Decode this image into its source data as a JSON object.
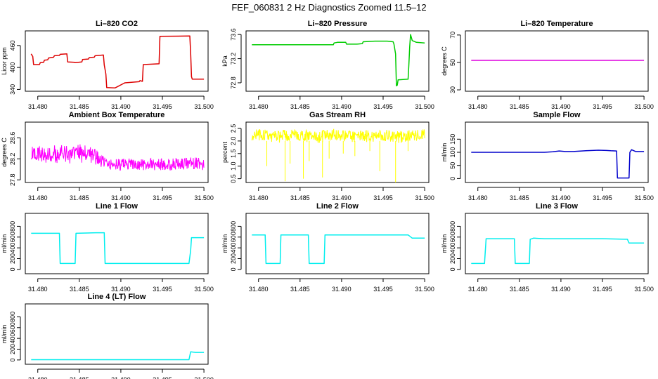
{
  "page": {
    "title": "FEF_060831  2 Hz Diagnostics Zoomed 11.5–12"
  },
  "chart_data": [
    {
      "type": "line",
      "title": "Li–820 CO2",
      "xlabel": "",
      "ylabel": "Licor ppm",
      "xlim": [
        31.4785,
        31.5005
      ],
      "ylim": [
        335,
        500
      ],
      "xticks": [
        31.48,
        31.485,
        31.49,
        31.495,
        31.5
      ],
      "xtick_labels": [
        "31.480",
        "31.485",
        "31.490",
        "31.495",
        "31.500"
      ],
      "yticks": [
        340,
        400,
        460
      ],
      "ytick_labels": [
        "340",
        "400",
        "460"
      ],
      "grid": false,
      "series": [
        {
          "color": "#dd0000",
          "x": [
            31.4792,
            31.4794,
            31.4795,
            31.4802,
            31.4803,
            31.4807,
            31.4808,
            31.4812,
            31.4813,
            31.4819,
            31.482,
            31.4826,
            31.4827,
            31.4835,
            31.4836,
            31.4844,
            31.4845,
            31.4853,
            31.4854,
            31.4861,
            31.4862,
            31.4868,
            31.4869,
            31.4879,
            31.488,
            31.4882,
            31.4883,
            31.4892,
            31.4893,
            31.4904,
            31.4905,
            31.4922,
            31.4923,
            31.4926,
            31.4927,
            31.4946,
            31.4947,
            31.4983,
            31.4984,
            31.4985,
            31.4986,
            31.5
          ],
          "y": [
            437,
            430,
            408,
            408,
            413,
            414,
            420,
            421,
            426,
            428,
            432,
            433,
            436,
            437,
            415,
            414,
            413,
            415,
            422,
            423,
            427,
            428,
            432,
            434,
            407,
            382,
            345,
            344,
            344,
            357,
            358,
            361,
            364,
            362,
            408,
            410,
            485,
            486,
            440,
            375,
            368,
            368
          ]
        }
      ]
    },
    {
      "type": "line",
      "title": "Li–820 Pressure",
      "xlabel": "",
      "ylabel": "kPa",
      "xlim": [
        31.4785,
        31.5005
      ],
      "ylim": [
        72.66,
        73.66
      ],
      "xticks": [
        31.48,
        31.485,
        31.49,
        31.495,
        31.5
      ],
      "xtick_labels": [
        "31.480",
        "31.485",
        "31.490",
        "31.495",
        "31.500"
      ],
      "yticks": [
        72.8,
        73.2,
        73.6
      ],
      "ytick_labels": [
        "72.8",
        "73.2",
        "73.6"
      ],
      "grid": false,
      "series": [
        {
          "color": "#00cc00",
          "x": [
            31.4792,
            31.489,
            31.4891,
            31.4895,
            31.4905,
            31.4906,
            31.4918,
            31.4925,
            31.4926,
            31.494,
            31.4955,
            31.4962,
            31.4963,
            31.4965,
            31.4966,
            31.4967,
            31.4968,
            31.498,
            31.4981,
            31.4982,
            31.4983,
            31.4985,
            31.499,
            31.5
          ],
          "y": [
            73.43,
            73.43,
            73.46,
            73.47,
            73.47,
            73.44,
            73.44,
            73.45,
            73.48,
            73.49,
            73.49,
            73.48,
            73.44,
            73.28,
            72.75,
            72.76,
            72.85,
            72.86,
            73.1,
            73.4,
            73.6,
            73.5,
            73.47,
            73.46
          ]
        }
      ]
    },
    {
      "type": "line",
      "title": "Li–820 Temperature",
      "xlabel": "",
      "ylabel": "degrees C",
      "xlim": [
        31.4785,
        31.5005
      ],
      "ylim": [
        29,
        73
      ],
      "xticks": [
        31.48,
        31.485,
        31.49,
        31.495,
        31.5
      ],
      "xtick_labels": [
        "31.480",
        "31.485",
        "31.490",
        "31.495",
        "31.500"
      ],
      "yticks": [
        30,
        50,
        70
      ],
      "ytick_labels": [
        "30",
        "50",
        "70"
      ],
      "grid": false,
      "series": [
        {
          "color": "#dd00dd",
          "x": [
            31.4792,
            31.5
          ],
          "y": [
            51.5,
            51.5
          ]
        }
      ]
    },
    {
      "type": "line",
      "title": "Ambient Box Temperature",
      "xlabel": "",
      "ylabel": "degrees C",
      "xlim": [
        31.4785,
        31.5005
      ],
      "ylim": [
        27.75,
        28.9
      ],
      "xticks": [
        31.48,
        31.485,
        31.49,
        31.495,
        31.5
      ],
      "xtick_labels": [
        "31.480",
        "31.485",
        "31.490",
        "31.495",
        "31.500"
      ],
      "yticks": [
        27.8,
        28.2,
        28.6
      ],
      "ytick_labels": [
        "27.8",
        "28.2",
        "28.6"
      ],
      "grid": false,
      "series": [
        {
          "color": "#ff00ff",
          "x": [
            31.4792,
            31.48,
            31.481,
            31.482,
            31.483,
            31.484,
            31.485,
            31.486,
            31.487,
            31.488,
            31.489,
            31.49,
            31.491,
            31.492,
            31.493,
            31.494,
            31.495,
            31.496,
            31.497,
            31.498,
            31.499,
            31.5
          ],
          "y": [
            28.26,
            28.3,
            28.28,
            28.3,
            28.29,
            28.27,
            28.3,
            28.31,
            28.25,
            28.11,
            28.1,
            28.09,
            28.1,
            28.08,
            28.1,
            28.09,
            28.1,
            28.09,
            28.11,
            28.1,
            28.12,
            28.09
          ],
          "spread": [
            0.2,
            0.22,
            0.2,
            0.22,
            0.22,
            0.2,
            0.22,
            0.22,
            0.2,
            0.15,
            0.14,
            0.14,
            0.14,
            0.14,
            0.15,
            0.14,
            0.14,
            0.14,
            0.15,
            0.15,
            0.15,
            0.14
          ]
        }
      ]
    },
    {
      "type": "line",
      "title": "Gas Stream RH",
      "xlabel": "",
      "ylabel": "percent",
      "xlim": [
        31.4785,
        31.5005
      ],
      "ylim": [
        0.35,
        2.75
      ],
      "xticks": [
        31.48,
        31.485,
        31.49,
        31.495,
        31.5
      ],
      "xtick_labels": [
        "31.480",
        "31.485",
        "31.490",
        "31.495",
        "31.500"
      ],
      "yticks": [
        0.5,
        1.0,
        1.5,
        2.0,
        2.5
      ],
      "ytick_labels": [
        "0.5",
        "1.0",
        "1.5",
        "2.0",
        "2.5"
      ],
      "grid": false,
      "series": [
        {
          "color": "#ffff00",
          "x": [
            31.4792,
            31.48,
            31.481,
            31.482,
            31.483,
            31.484,
            31.485,
            31.486,
            31.487,
            31.488,
            31.489,
            31.49,
            31.491,
            31.492,
            31.493,
            31.494,
            31.495,
            31.496,
            31.497,
            31.498,
            31.499,
            31.5
          ],
          "y": [
            2.2,
            2.25,
            2.2,
            2.15,
            2.2,
            2.25,
            2.2,
            2.2,
            2.15,
            2.2,
            2.25,
            2.2,
            2.2,
            2.15,
            2.2,
            2.2,
            2.25,
            2.2,
            2.15,
            2.2,
            2.2,
            2.25
          ],
          "spread": [
            0.3,
            0.3,
            0.3,
            0.3,
            0.3,
            0.3,
            0.3,
            0.3,
            0.3,
            0.3,
            0.3,
            0.3,
            0.3,
            0.3,
            0.3,
            0.3,
            0.3,
            0.3,
            0.3,
            0.3,
            0.3,
            0.3
          ]
        }
      ],
      "dips": [
        {
          "x": 31.481,
          "y": 1.0
        },
        {
          "x": 31.4832,
          "y": 0.4
        },
        {
          "x": 31.4838,
          "y": 1.1
        },
        {
          "x": 31.4854,
          "y": 0.5
        },
        {
          "x": 31.4861,
          "y": 1.2
        },
        {
          "x": 31.4877,
          "y": 0.55
        },
        {
          "x": 31.4885,
          "y": 1.3
        },
        {
          "x": 31.4902,
          "y": 1.5
        },
        {
          "x": 31.4916,
          "y": 1.4
        },
        {
          "x": 31.4934,
          "y": 1.6
        },
        {
          "x": 31.4946,
          "y": 0.8
        },
        {
          "x": 31.4965,
          "y": 0.35
        },
        {
          "x": 31.498,
          "y": 1.6
        }
      ]
    },
    {
      "type": "line",
      "title": "Sample Flow",
      "xlabel": "",
      "ylabel": "ml/min",
      "xlim": [
        31.4785,
        31.5005
      ],
      "ylim": [
        -15,
        215
      ],
      "xticks": [
        31.48,
        31.485,
        31.49,
        31.495,
        31.5
      ],
      "xtick_labels": [
        "31.480",
        "31.485",
        "31.490",
        "31.495",
        "31.500"
      ],
      "yticks": [
        0,
        50,
        100,
        150
      ],
      "ytick_labels": [
        "0",
        "50",
        "100",
        "150"
      ],
      "grid": false,
      "series": [
        {
          "color": "#0000cc",
          "x": [
            31.4792,
            31.488,
            31.489,
            31.4898,
            31.4905,
            31.4915,
            31.493,
            31.4945,
            31.4955,
            31.496,
            31.4967,
            31.4968,
            31.4982,
            31.4983,
            31.4985,
            31.499,
            31.5
          ],
          "y": [
            100,
            100,
            102,
            105,
            103,
            103,
            106,
            108,
            107,
            106,
            105,
            2,
            2,
            100,
            110,
            103,
            103
          ]
        }
      ]
    },
    {
      "type": "line",
      "title": "Line 1 Flow",
      "xlabel": "",
      "ylabel": "ml/min",
      "xlim": [
        31.4785,
        31.5005
      ],
      "ylim": [
        -80,
        1040
      ],
      "xticks": [
        31.48,
        31.485,
        31.49,
        31.495,
        31.5
      ],
      "xtick_labels": [
        "31.480",
        "31.485",
        "31.490",
        "31.495",
        "31.500"
      ],
      "yticks": [
        0,
        200,
        400,
        600,
        800
      ],
      "ytick_labels": [
        "0",
        "200",
        "400",
        "600",
        "800"
      ],
      "grid": false,
      "series": [
        {
          "color": "#00eeee",
          "x": [
            31.4792,
            31.4826,
            31.4827,
            31.4845,
            31.4846,
            31.487,
            31.488,
            31.4881,
            31.4982,
            31.4984,
            31.4985,
            31.5
          ],
          "y": [
            670,
            670,
            110,
            110,
            670,
            680,
            680,
            110,
            110,
            350,
            590,
            590
          ]
        }
      ]
    },
    {
      "type": "line",
      "title": "Line 2 Flow",
      "xlabel": "",
      "ylabel": "ml/min",
      "xlim": [
        31.4785,
        31.5005
      ],
      "ylim": [
        -80,
        1040
      ],
      "xticks": [
        31.48,
        31.485,
        31.49,
        31.495,
        31.5
      ],
      "xtick_labels": [
        "31.480",
        "31.485",
        "31.490",
        "31.495",
        "31.500"
      ],
      "yticks": [
        0,
        200,
        400,
        600,
        800
      ],
      "ytick_labels": [
        "0",
        "200",
        "400",
        "600",
        "800"
      ],
      "grid": false,
      "series": [
        {
          "color": "#00eeee",
          "x": [
            31.4792,
            31.4808,
            31.4809,
            31.4826,
            31.4827,
            31.486,
            31.4861,
            31.4879,
            31.488,
            31.498,
            31.4985,
            31.5
          ],
          "y": [
            640,
            640,
            110,
            110,
            640,
            640,
            110,
            110,
            640,
            640,
            580,
            580
          ]
        }
      ]
    },
    {
      "type": "line",
      "title": "Line 3 Flow",
      "xlabel": "",
      "ylabel": "ml/min",
      "xlim": [
        31.4785,
        31.5005
      ],
      "ylim": [
        -80,
        1040
      ],
      "xticks": [
        31.48,
        31.485,
        31.49,
        31.495,
        31.5
      ],
      "xtick_labels": [
        "31.480",
        "31.485",
        "31.490",
        "31.495",
        "31.500"
      ],
      "yticks": [
        0,
        200,
        400,
        600,
        800
      ],
      "ytick_labels": [
        "0",
        "200",
        "400",
        "600",
        "800"
      ],
      "grid": false,
      "series": [
        {
          "color": "#00eeee",
          "x": [
            31.4792,
            31.4808,
            31.481,
            31.4844,
            31.4845,
            31.4862,
            31.4863,
            31.4867,
            31.488,
            31.492,
            31.495,
            31.498,
            31.4982,
            31.5
          ],
          "y": [
            110,
            110,
            570,
            570,
            110,
            110,
            560,
            580,
            570,
            570,
            570,
            560,
            490,
            490
          ]
        }
      ]
    },
    {
      "type": "line",
      "title": "Line 4 (LT) Flow",
      "xlabel": "",
      "ylabel": "ml/min",
      "xlim": [
        31.4785,
        31.5005
      ],
      "ylim": [
        -80,
        1040
      ],
      "xticks": [
        31.48,
        31.485,
        31.49,
        31.495,
        31.5
      ],
      "xtick_labels": [
        "31.480",
        "31.485",
        "31.490",
        "31.495",
        "31.500"
      ],
      "yticks": [
        0,
        200,
        400,
        600,
        800
      ],
      "ytick_labels": [
        "0",
        "200",
        "400",
        "600",
        "800"
      ],
      "grid": false,
      "series": [
        {
          "color": "#00eeee",
          "x": [
            31.4792,
            31.4982,
            31.4984,
            31.499,
            31.5
          ],
          "y": [
            5,
            5,
            150,
            140,
            140
          ]
        }
      ]
    }
  ]
}
